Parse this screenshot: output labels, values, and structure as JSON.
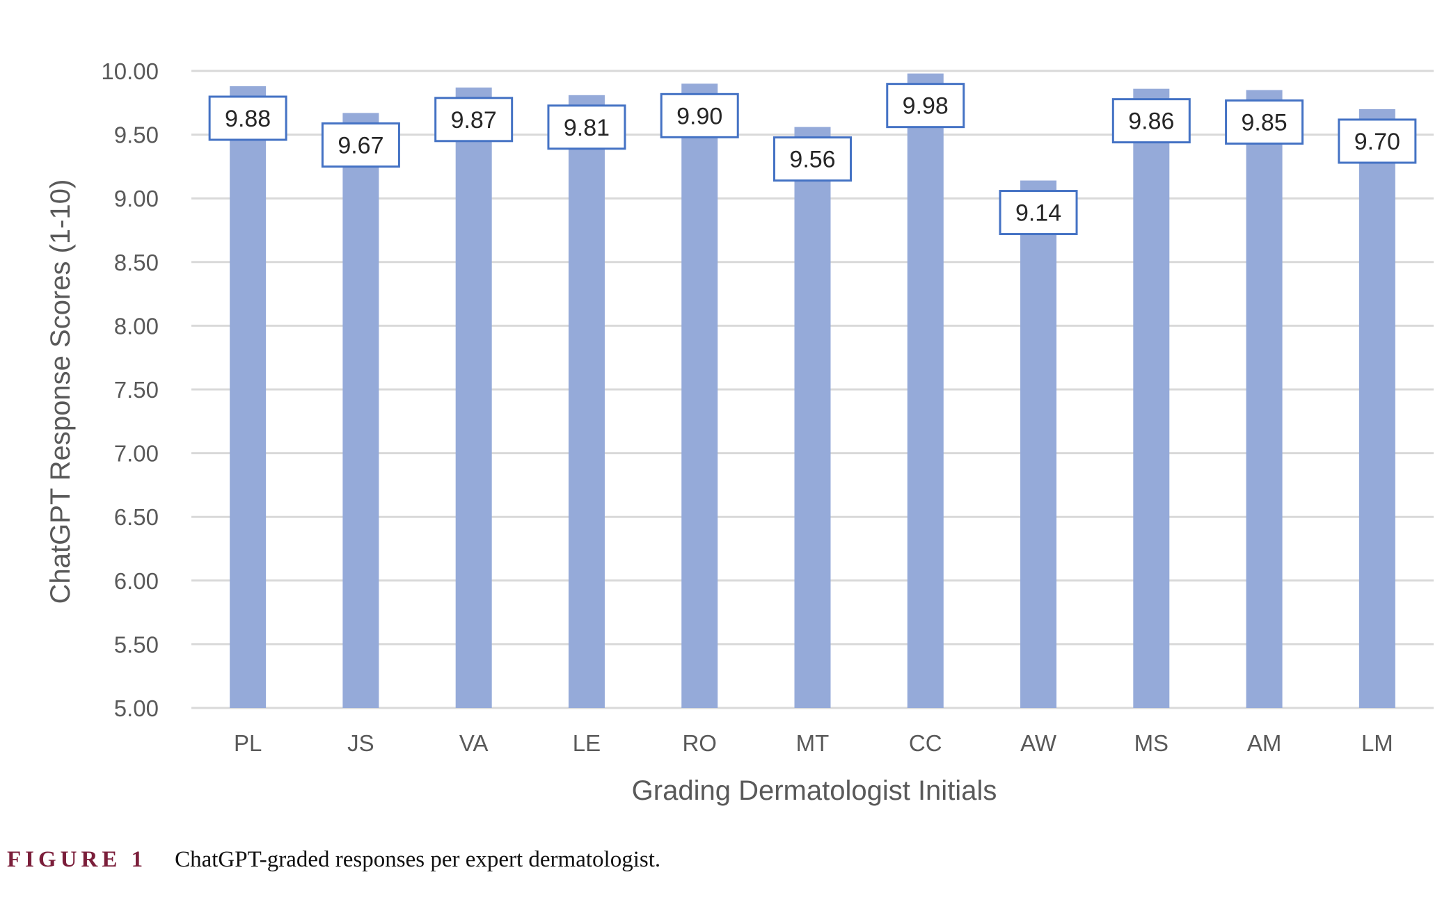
{
  "chart_data": {
    "type": "bar",
    "categories": [
      "PL",
      "JS",
      "VA",
      "LE",
      "RO",
      "MT",
      "CC",
      "AW",
      "MS",
      "AM",
      "LM"
    ],
    "values": [
      9.88,
      9.67,
      9.87,
      9.81,
      9.9,
      9.56,
      9.98,
      9.14,
      9.86,
      9.85,
      9.7
    ],
    "value_labels": [
      "9.88",
      "9.67",
      "9.87",
      "9.81",
      "9.90",
      "9.56",
      "9.98",
      "9.14",
      "9.86",
      "9.85",
      "9.70"
    ],
    "xlabel": "Grading Dermatologist Initials",
    "ylabel": "ChatGPT Response Scores (1-10)",
    "ylim": [
      5.0,
      10.0
    ],
    "yticks": [
      "5.00",
      "5.50",
      "6.00",
      "6.50",
      "7.00",
      "7.50",
      "8.00",
      "8.50",
      "9.00",
      "9.50",
      "10.00"
    ],
    "grid": true,
    "bar_color": "#95aad9",
    "label_border_color": "#4472c4"
  },
  "caption": {
    "tag": "FIGURE 1",
    "text": "ChatGPT-graded responses per expert dermatologist."
  }
}
